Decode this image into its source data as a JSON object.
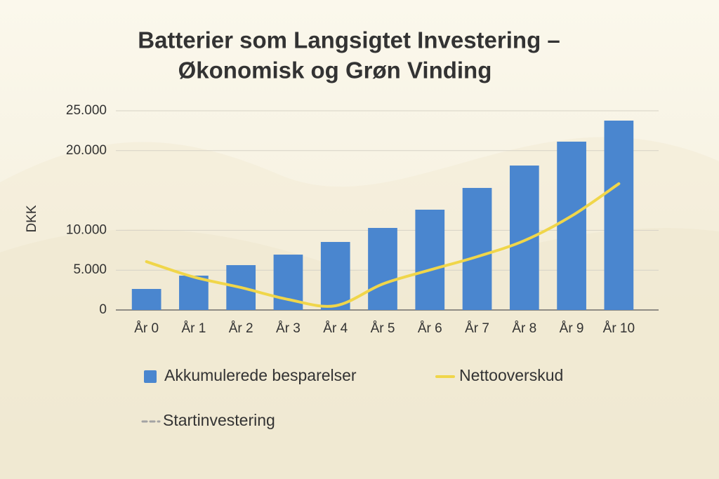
{
  "chart_data": {
    "type": "bar",
    "title": [
      "Batterier som Langsigtet Investering –",
      "Økonomisk og Grøn Vinding"
    ],
    "y_label": "DKK",
    "categories": [
      "År 0",
      "År 1",
      "År 2",
      "År 3",
      "År 4",
      "År 5",
      "År 6",
      "År 7",
      "År 8",
      "År 9",
      "År 10"
    ],
    "series": [
      {
        "name": "Akkumulerede besparelser",
        "type": "bar",
        "color": "#4a86cf",
        "values": [
          2640,
          4310,
          5630,
          6950,
          8540,
          10300,
          12590,
          15320,
          18130,
          21130,
          23770
        ]
      },
      {
        "name": "Nettooverskud",
        "type": "line",
        "color": "#f0d64a",
        "values": [
          6070,
          4140,
          2820,
          1320,
          530,
          3260,
          5020,
          6690,
          8710,
          11800,
          15850
        ]
      },
      {
        "name": "Startinvestering",
        "type": "line",
        "dashed": true,
        "color": "#a3a3a3",
        "values": [
          null,
          null,
          null,
          null,
          null,
          null,
          null,
          null,
          null,
          null,
          null
        ]
      }
    ],
    "ylim": [
      0,
      25000
    ],
    "yticks": [
      0,
      {
        "value": 5000,
        "label": "5.000"
      },
      {
        "value": 10000,
        "label": "10.000"
      },
      {
        "value": 20000,
        "label": "20.000"
      },
      {
        "value": 25000,
        "label": "25.000"
      }
    ],
    "grid": true
  }
}
